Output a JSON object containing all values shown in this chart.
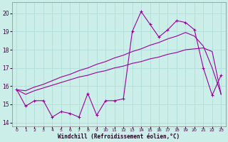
{
  "xlabel": "Windchill (Refroidissement éolien,°C)",
  "bg_color": "#cbeee9",
  "line_color": "#990099",
  "xlim": [
    -0.5,
    23.5
  ],
  "ylim": [
    13.8,
    20.6
  ],
  "xticks": [
    0,
    1,
    2,
    3,
    4,
    5,
    6,
    7,
    8,
    9,
    10,
    11,
    12,
    13,
    14,
    15,
    16,
    17,
    18,
    19,
    20,
    21,
    22,
    23
  ],
  "yticks": [
    14,
    15,
    16,
    17,
    18,
    19,
    20
  ],
  "grid_color": "#b0ddd8",
  "x_data": [
    0,
    1,
    2,
    3,
    4,
    5,
    6,
    7,
    8,
    9,
    10,
    11,
    12,
    13,
    14,
    15,
    16,
    17,
    18,
    19,
    20,
    21,
    22,
    23
  ],
  "y_main": [
    15.8,
    14.9,
    15.2,
    15.2,
    14.3,
    14.6,
    14.5,
    14.3,
    15.6,
    14.4,
    15.2,
    15.2,
    15.3,
    19.0,
    20.1,
    19.4,
    18.7,
    19.1,
    19.6,
    19.5,
    19.1,
    17.0,
    15.5,
    16.6
  ],
  "y_line1": [
    15.8,
    15.55,
    15.75,
    15.9,
    16.05,
    16.2,
    16.35,
    16.5,
    16.6,
    16.75,
    16.85,
    17.0,
    17.1,
    17.25,
    17.35,
    17.5,
    17.6,
    17.75,
    17.85,
    18.0,
    18.05,
    18.1,
    17.9,
    15.55
  ],
  "y_line2": [
    15.8,
    15.75,
    15.95,
    16.1,
    16.3,
    16.5,
    16.65,
    16.85,
    17.0,
    17.2,
    17.35,
    17.55,
    17.7,
    17.9,
    18.05,
    18.25,
    18.4,
    18.6,
    18.75,
    18.95,
    18.75,
    18.2,
    17.0,
    15.55
  ]
}
